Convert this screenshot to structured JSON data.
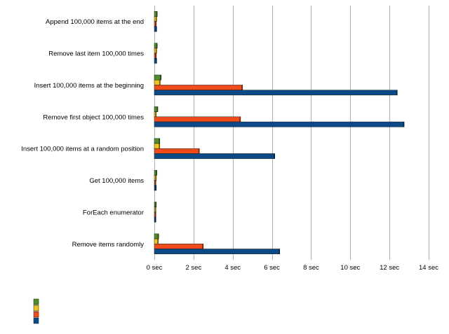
{
  "chart_data": {
    "type": "bar",
    "orientation": "horizontal",
    "categories": [
      "Append 100,000 items at the end",
      "Remove last item 100,000 times",
      "Insert 100,000 items at the beginning",
      "Remove first object 100,000 times",
      "Insert 100,000 items at a random position",
      "Get 100,000 items",
      "ForEach enumerator",
      "Remove items randomly"
    ],
    "series": [
      {
        "color": "#4e8f2c",
        "values": [
          0.15,
          0.15,
          0.35,
          0.18,
          0.28,
          0.13,
          0.1,
          0.22
        ]
      },
      {
        "color": "#f0c419",
        "values": [
          0.12,
          0.12,
          0.3,
          0.1,
          0.28,
          0.1,
          0.08,
          0.2
        ]
      },
      {
        "color": "#f04b1a",
        "values": [
          0.1,
          0.1,
          4.5,
          4.4,
          2.3,
          0.08,
          0.08,
          2.5
        ]
      },
      {
        "color": "#0b4a86",
        "values": [
          0.12,
          0.12,
          12.4,
          12.75,
          6.15,
          0.1,
          0.08,
          6.4
        ]
      }
    ],
    "xlim": [
      0,
      14
    ],
    "x_ticks": [
      {
        "value": 0,
        "label": "0 sec"
      },
      {
        "value": 2,
        "label": "2 sec"
      },
      {
        "value": 4,
        "label": "4 sec"
      },
      {
        "value": 6,
        "label": "6 sec"
      },
      {
        "value": 8,
        "label": "8 sec"
      },
      {
        "value": 10,
        "label": "10 sec"
      },
      {
        "value": 12,
        "label": "12 sec"
      },
      {
        "value": 14,
        "label": "14 sec"
      }
    ],
    "grid": true,
    "legend_position": "bottom-left"
  }
}
